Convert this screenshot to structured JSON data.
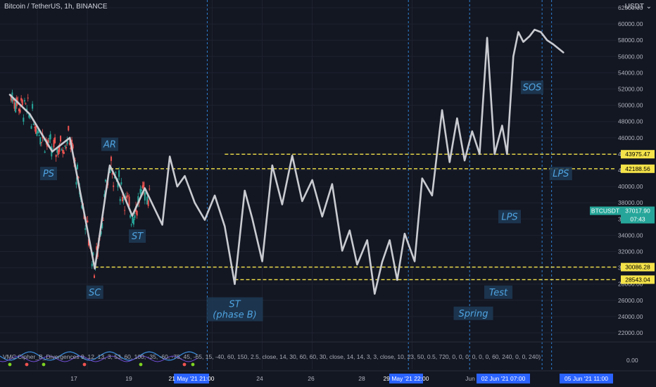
{
  "header": {
    "title": "Bitcoin / TetherUS, 1h, BINANCE",
    "currency": "USDT",
    "currency_icon": "chevron-down-icon"
  },
  "colors": {
    "background": "#131722",
    "path": "#c9cbd1",
    "level": "#f5e34a",
    "vline": "#2e7fd1",
    "annotation_box": "#1f3a55",
    "annotation_text": "#4fa3e0",
    "last_price_bg": "#26a69a",
    "date_tag_bg": "#2962ff",
    "bull": "#26a69a",
    "bear": "#ef5350"
  },
  "chart_data": {
    "type": "line",
    "title": "",
    "xlabel": "",
    "ylabel": "",
    "ylim": [
      20000,
      62000
    ],
    "y_ticks": [
      "62000.00",
      "60000.00",
      "58000.00",
      "56000.00",
      "54000.00",
      "52000.00",
      "50000.00",
      "48000.00",
      "46000.00",
      "44000.00",
      "42000.00",
      "40000.00",
      "38000.00",
      "36000.00",
      "34000.00",
      "32000.00",
      "30000.00",
      "28000.00",
      "26000.00",
      "24000.00",
      "22000.00"
    ],
    "x_ticks": [
      "17",
      "19",
      "24",
      "26",
      "28",
      "Jun"
    ],
    "date_tags": [
      "21 May '21   21:00",
      "29 May '21   22:00",
      "02 Jun '21   07:00",
      "05 Jun '21   11:00"
    ],
    "wyckoff_path": {
      "days": [
        14.0,
        14.8,
        15.7,
        16.4,
        17.4,
        18.0,
        18.4,
        18.9,
        19.4,
        20.1,
        20.4,
        20.7,
        21.0,
        21.4,
        21.8,
        22.2,
        22.6,
        23.0,
        23.4,
        23.7,
        24.1,
        24.5,
        24.9,
        25.3,
        25.7,
        26.1,
        26.5,
        26.9,
        27.3,
        27.6,
        27.9,
        28.3,
        28.6,
        28.9,
        29.2,
        29.5,
        29.8,
        30.2,
        30.5,
        30.9,
        31.3,
        31.6,
        31.9,
        32.2,
        32.5,
        32.8,
        33.1,
        33.4,
        33.7,
        33.9,
        34.15,
        34.35,
        34.55,
        34.8,
        35.0,
        35.25,
        35.5,
        35.75,
        36.15
      ],
      "prices": [
        51300,
        48900,
        44300,
        46000,
        29900,
        42600,
        40100,
        36400,
        39800,
        35300,
        43700,
        40000,
        41300,
        38000,
        35900,
        38900,
        35100,
        28000,
        39500,
        36100,
        30800,
        42600,
        37800,
        43800,
        38200,
        40800,
        36300,
        40300,
        32100,
        34600,
        30400,
        33400,
        26800,
        30700,
        33400,
        28500,
        34200,
        30800,
        41000,
        38900,
        49400,
        43000,
        48400,
        43200,
        46800,
        44000,
        58300,
        44000,
        47500,
        44000,
        56000,
        59000,
        57800,
        58500,
        59300,
        59000,
        58000,
        57500,
        56500
      ]
    },
    "levels": [
      {
        "name": "creek-upper",
        "value": 43975.47,
        "label": "43975.47"
      },
      {
        "name": "creek-lower",
        "value": 42188.56,
        "label": "42188.56"
      },
      {
        "name": "support-upper",
        "value": 30086.28,
        "label": "30086.28"
      },
      {
        "name": "support-lower",
        "value": 28543.04,
        "label": "28543.04"
      }
    ],
    "last_price": {
      "symbol": "BTCUSDT",
      "value": 37017.9,
      "label": "37017.90",
      "countdown": "07:43"
    },
    "annotations": [
      {
        "text": "PS",
        "day": 15.55,
        "price": 41600
      },
      {
        "text": "SC",
        "day": 17.4,
        "price": 27000
      },
      {
        "text": "AR",
        "day": 18.0,
        "price": 45200
      },
      {
        "text": "ST",
        "day": 19.1,
        "price": 33900
      },
      {
        "text": "ST",
        "day": 23.0,
        "price": 24900,
        "text2": "(phase B)"
      },
      {
        "text": "Spring",
        "day": 32.55,
        "price": 24400
      },
      {
        "text": "Test",
        "day": 33.55,
        "price": 27000
      },
      {
        "text": "LPS",
        "day": 34.0,
        "price": 36300
      },
      {
        "text": "SOS",
        "day": 34.9,
        "price": 52200
      },
      {
        "text": "LPS",
        "day": 36.05,
        "price": 41600
      }
    ],
    "indicator": {
      "label": "VMC Cipher_B_Divergences 9, 12, 13, 3, 53, 60, 100, -35, -60, -75, 45, -65, 15, -40, 60, 150, 2.5, close, 14, 30, 60, 60, 30, close, 14, 14, 3, 3, close, 10, 23, 50, 0.5, 720, 0, 0, 0, 0, 0, 0, 60, 240, 0, 0, 240)",
      "y_tick": "0.00"
    }
  }
}
